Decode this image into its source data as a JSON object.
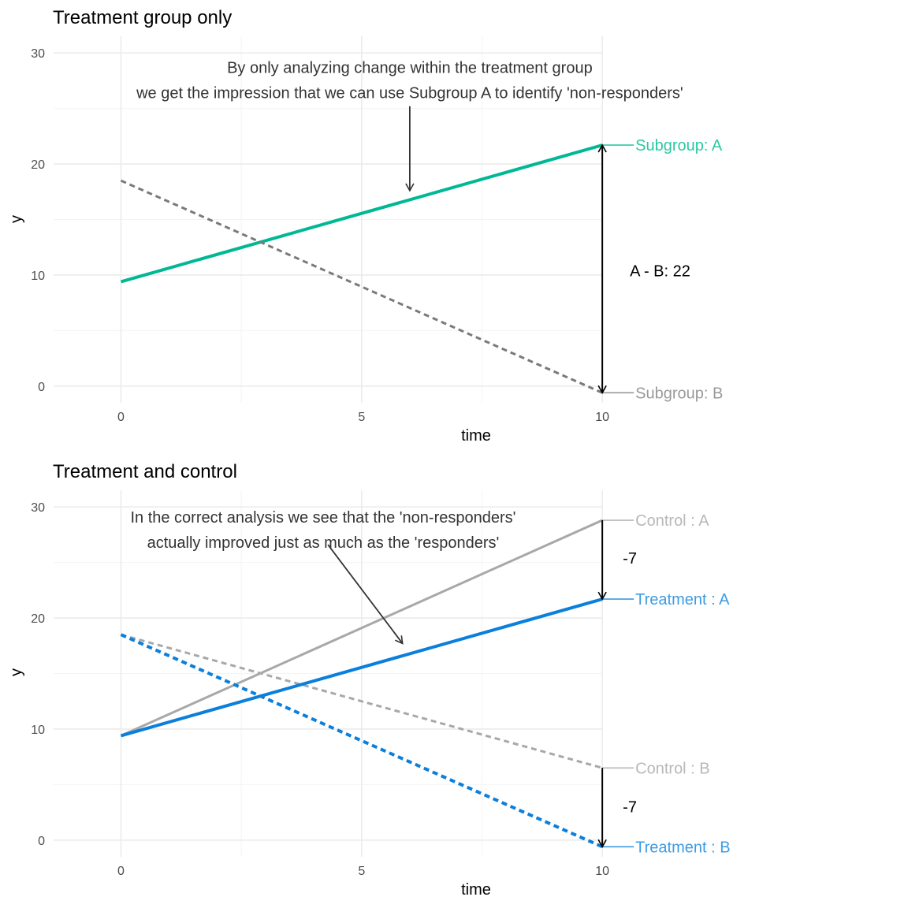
{
  "chart_data": [
    {
      "type": "line",
      "title": "Treatment group only",
      "xlabel": "time",
      "ylabel": "y",
      "xlim": [
        -1.4,
        13.6
      ],
      "ylim": [
        -1.5,
        31.5
      ],
      "x_ticks": [
        0,
        5,
        10
      ],
      "y_ticks": [
        0,
        10,
        20,
        30
      ],
      "x_tick_labels": [
        "0",
        "5",
        "10"
      ],
      "y_tick_labels": [
        "0",
        "10",
        "20",
        "30"
      ],
      "grid": true,
      "series": [
        {
          "label": "Subgroup:  A",
          "x": [
            0,
            10
          ],
          "y": [
            9.4,
            21.7
          ],
          "color": "#00b894",
          "dash": "solid",
          "width": "thick",
          "label_color": "#2dc8a4"
        },
        {
          "label": "Subgroup:  B",
          "x": [
            0,
            10
          ],
          "y": [
            18.5,
            -0.6
          ],
          "color": "#7a7a7a",
          "dash": "dotted",
          "width": "medium",
          "label_color": "#9a9a9a"
        }
      ],
      "difference_annotations": [
        {
          "x": 10,
          "from": 21.7,
          "to": -0.6,
          "label": "A - B: 22",
          "label_y": 10.4
        }
      ],
      "note": {
        "lines": [
          "By only analyzing change within the treatment group",
          "we get the impression that we can use Subgroup A to identify 'non-responders'"
        ],
        "text_x": 6.0,
        "text_y_top": 28.2,
        "arrow_from": [
          6.0,
          25.2
        ],
        "arrow_to": [
          6.0,
          17.6
        ]
      }
    },
    {
      "type": "line",
      "title": "Treatment and control",
      "xlabel": "time",
      "ylabel": "y",
      "xlim": [
        -1.4,
        13.6
      ],
      "ylim": [
        -1.5,
        31.5
      ],
      "x_ticks": [
        0,
        5,
        10
      ],
      "y_ticks": [
        0,
        10,
        20,
        30
      ],
      "x_tick_labels": [
        "0",
        "5",
        "10"
      ],
      "y_tick_labels": [
        "0",
        "10",
        "20",
        "30"
      ],
      "grid": true,
      "series": [
        {
          "label": "Control :  A",
          "x": [
            0,
            10
          ],
          "y": [
            9.4,
            28.8
          ],
          "color": "#a8a8a8",
          "dash": "solid",
          "width": "medium",
          "label_color": "#b8b8b8"
        },
        {
          "label": "Control :  B",
          "x": [
            0,
            10
          ],
          "y": [
            18.5,
            6.5
          ],
          "color": "#a8a8a8",
          "dash": "dotted",
          "width": "medium",
          "label_color": "#b8b8b8"
        },
        {
          "label": "Treatment :  A",
          "x": [
            0,
            10
          ],
          "y": [
            9.4,
            21.7
          ],
          "color": "#0a7fdb",
          "dash": "solid",
          "width": "thick",
          "label_color": "#3d9be3"
        },
        {
          "label": "Treatment :  B",
          "x": [
            0,
            10
          ],
          "y": [
            18.5,
            -0.6
          ],
          "color": "#0a7fdb",
          "dash": "dotted",
          "width": "thick",
          "label_color": "#3d9be3"
        }
      ],
      "difference_annotations": [
        {
          "x": 10,
          "from": 28.8,
          "to": 21.7,
          "label": "-7",
          "label_y": 25.4
        },
        {
          "x": 10,
          "from": 6.5,
          "to": -0.6,
          "label": "-7",
          "label_y": 3.0
        }
      ],
      "note": {
        "lines": [
          "In the correct analysis we see that the 'non-responders'",
          "actually improved just as much as the 'responders'"
        ],
        "text_x": 4.2,
        "text_y_top": 28.6,
        "arrow_from": [
          4.3,
          26.6
        ],
        "arrow_to": [
          5.85,
          17.7
        ]
      }
    }
  ]
}
